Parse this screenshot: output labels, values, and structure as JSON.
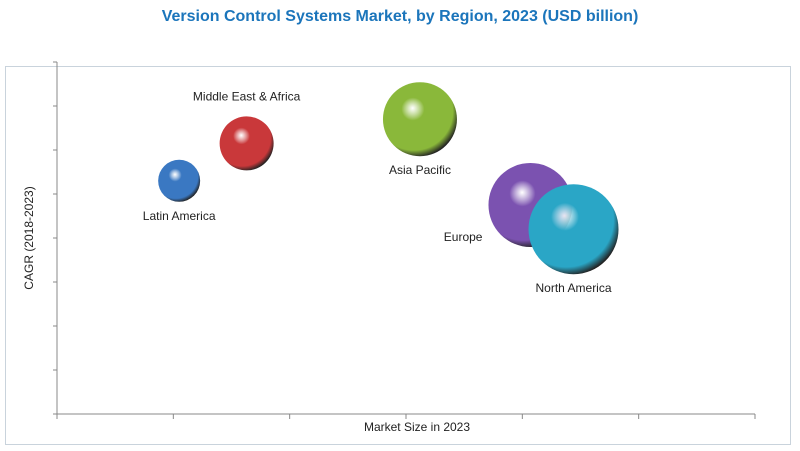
{
  "chart_data": {
    "type": "bubble",
    "title": "Version Control Systems Market, by Region, 2023 (USD billion)",
    "xlabel": "Market Size in 2023",
    "ylabel": "CAGR (2018-2023)",
    "x_ticks_count": 6,
    "y_ticks_count": 8,
    "xlim": [
      0,
      6
    ],
    "ylim": [
      0,
      8
    ],
    "grid": false,
    "legend": "none",
    "series": [
      {
        "name": "Latin America",
        "x": 1.05,
        "y": 5.3,
        "size": 21,
        "color": "#3a78c2",
        "label_pos": "below"
      },
      {
        "name": "Middle East & Africa",
        "x": 1.63,
        "y": 6.15,
        "size": 27,
        "color": "#c9383a",
        "label_pos": "above"
      },
      {
        "name": "Asia Pacific",
        "x": 3.12,
        "y": 6.7,
        "size": 37,
        "color": "#8ab83a",
        "label_pos": "below"
      },
      {
        "name": "Europe",
        "x": 4.07,
        "y": 4.75,
        "size": 42,
        "color": "#7b52b0",
        "label_pos": "left"
      },
      {
        "name": "North America",
        "x": 4.44,
        "y": 4.2,
        "size": 45,
        "color": "#2aa6c6",
        "label_pos": "below"
      }
    ]
  }
}
